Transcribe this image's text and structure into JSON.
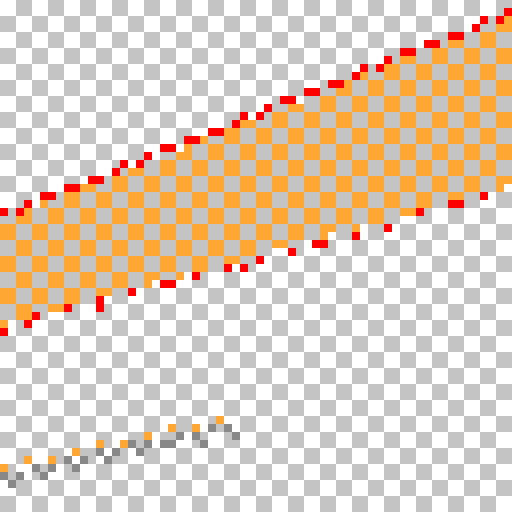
{
  "editor": {
    "canvas_label": "",
    "background": "transparency-checkerboard"
  },
  "palette": {
    "body_fill": "#FFA733",
    "outline": "#FF0000",
    "shadow": "#888888",
    "checker_light": "#FFFFFF",
    "checker_dark": "#C4C4C4"
  },
  "sprite": {
    "shape": "diagonal-band",
    "direction": "bottom-left-to-top-right",
    "parts": [
      "orange-dithered-body",
      "red-outline-edge",
      "grey-shadow-strip"
    ]
  }
}
